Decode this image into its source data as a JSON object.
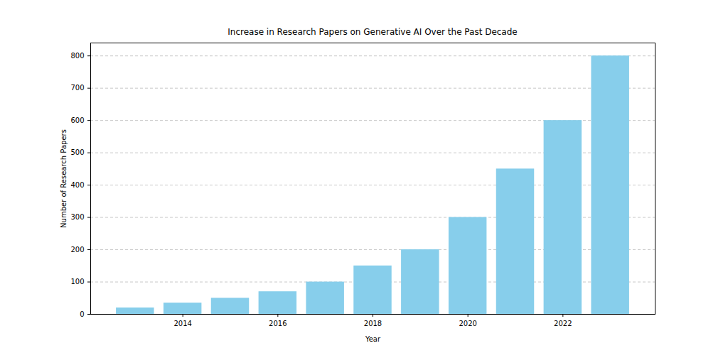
{
  "chart_data": {
    "type": "bar",
    "title": "Increase in Research Papers on Generative AI Over the Past Decade",
    "x_label": "Year",
    "y_label": "Number of Research Papers",
    "x": [
      2013,
      2014,
      2015,
      2016,
      2017,
      2018,
      2019,
      2020,
      2021,
      2022,
      2023
    ],
    "values": [
      20,
      35,
      50,
      70,
      100,
      150,
      200,
      300,
      450,
      600,
      800
    ],
    "color": "#87ceeb",
    "xlim": [
      2012.06,
      2023.94
    ],
    "xticks": [
      2014,
      2016,
      2018,
      2020,
      2022
    ],
    "ylim": [
      0,
      840
    ],
    "yticks": [
      0,
      100,
      200,
      300,
      400,
      500,
      600,
      700,
      800
    ],
    "grid": true
  }
}
